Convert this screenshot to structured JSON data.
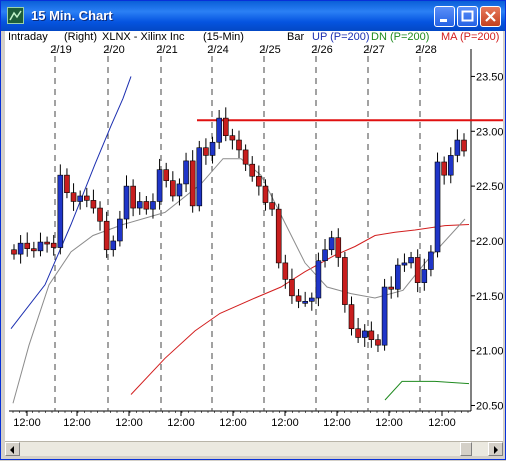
{
  "window": {
    "title": "15 Min. Chart",
    "controls": [
      "minimize",
      "maximize",
      "close"
    ]
  },
  "header": {
    "period": "Intraday",
    "axis_side": "(Right)",
    "symbol": "XLNX - Xilinx Inc",
    "interval": "(15-Min)",
    "chart_style": "Bar",
    "up_label": "UP (P=200)",
    "dn_label": "DN (P=200)",
    "ma_label": "MA (P=200)"
  },
  "colors": {
    "up_candle": "#1f35c8",
    "down_candle": "#c81e1e",
    "upper_band": "#1c2fb0",
    "lower_band": "#1f8a1f",
    "moving_average": "#d21e1e",
    "gray_line": "#8c8c8c",
    "resistance": "#e01010"
  },
  "chart_data": {
    "type": "line",
    "title": "XLNX - Xilinx Inc",
    "xlabel": "",
    "ylabel": "",
    "date_labels": [
      "2/19",
      "2/20",
      "2/21",
      "2/24",
      "2/25",
      "2/26",
      "2/27",
      "2/28"
    ],
    "x_ticks": [
      "12:00",
      "12:00",
      "12:00",
      "12:00",
      "12:00",
      "12:00",
      "12:00",
      "12:00",
      "12:00"
    ],
    "y_ticks": [
      "23.50",
      "23.00",
      "22.50",
      "22.00",
      "21.50",
      "21.00",
      "20.50"
    ],
    "ylim": [
      20.45,
      23.75
    ],
    "resistance_level": 23.1,
    "grid": "dashed vertical lines at day boundaries",
    "series": [
      {
        "name": "Price",
        "values": [
          21.88,
          21.98,
          21.93,
          21.91,
          21.99,
          21.98,
          21.94,
          22.6,
          22.44,
          22.36,
          22.41,
          22.37,
          22.3,
          22.18,
          21.92,
          22.0,
          22.2,
          22.5,
          22.3,
          22.36,
          22.29,
          22.36,
          22.65,
          22.55,
          22.41,
          22.52,
          22.73,
          22.32,
          22.85,
          22.78,
          22.9,
          23.12,
          22.96,
          22.92,
          22.83,
          22.7,
          22.59,
          22.5,
          22.35,
          22.29,
          21.8,
          21.65,
          21.5,
          21.45,
          21.45,
          21.48,
          21.82,
          21.92,
          22.03,
          21.85,
          21.42,
          21.2,
          21.12,
          21.18,
          21.1,
          21.05,
          21.58,
          21.56,
          21.78,
          21.8,
          21.85,
          21.62,
          21.74,
          21.9,
          22.72,
          22.6,
          22.78,
          22.92,
          22.82
        ]
      },
      {
        "name": "UP (P=200)",
        "values": [
          21.2,
          21.6,
          22.15,
          22.7,
          23.05,
          23.3,
          23.5
        ]
      },
      {
        "name": "DN (P=200)",
        "values": [
          20.55,
          20.72,
          20.72,
          20.7
        ]
      },
      {
        "name": "MA (P=200)",
        "values": [
          20.6,
          20.93,
          21.18,
          21.34,
          21.48,
          21.58,
          21.72,
          21.87,
          21.95,
          22.05,
          22.08,
          22.1,
          22.14,
          22.15
        ]
      },
      {
        "name": "gray",
        "values": [
          20.52,
          21.05,
          21.6,
          21.9,
          22.05,
          22.15,
          22.26,
          22.52,
          22.75,
          22.75,
          22.6,
          22.2,
          21.8,
          21.58,
          21.52,
          21.48,
          21.55,
          21.8,
          22.2
        ]
      }
    ]
  }
}
